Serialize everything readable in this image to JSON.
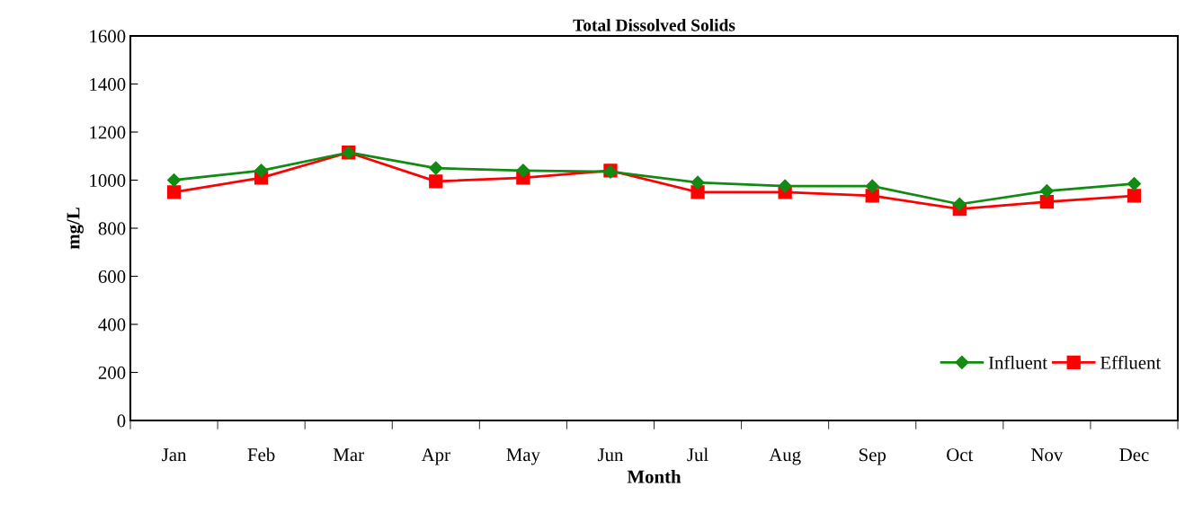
{
  "chart_data": {
    "type": "line",
    "title": "Total Dissolved Solids",
    "xlabel": "Month",
    "ylabel": "mg/L",
    "categories": [
      "Jan",
      "Feb",
      "Mar",
      "Apr",
      "May",
      "Jun",
      "Jul",
      "Aug",
      "Sep",
      "Oct",
      "Nov",
      "Dec"
    ],
    "series": [
      {
        "name": "Influent",
        "color": "#138a13",
        "marker": "diamond",
        "values": [
          1000,
          1040,
          1115,
          1050,
          1040,
          1035,
          990,
          975,
          975,
          900,
          955,
          985
        ]
      },
      {
        "name": "Effluent",
        "color": "#ff0000",
        "marker": "square",
        "values": [
          950,
          1010,
          1115,
          995,
          1010,
          1040,
          950,
          950,
          935,
          880,
          910,
          935
        ]
      }
    ],
    "ylim": [
      0,
      1600
    ],
    "yticks": [
      0,
      200,
      400,
      600,
      800,
      1000,
      1200,
      1400,
      1600
    ],
    "grid": false,
    "legend": "bottom right",
    "line_style": "solid"
  }
}
